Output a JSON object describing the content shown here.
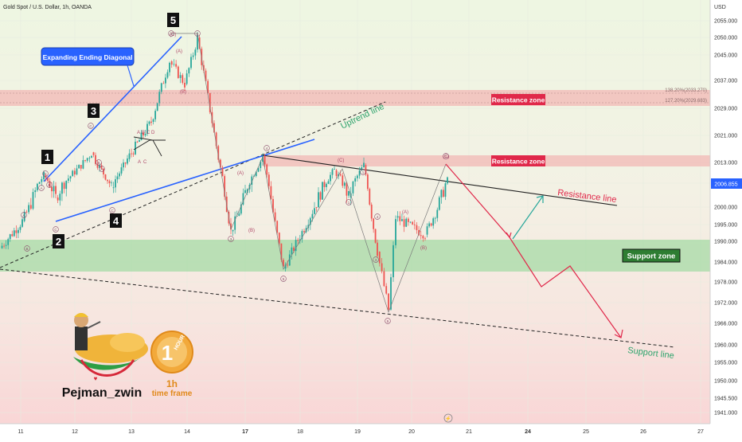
{
  "header": {
    "title": "Gold Spot / U.S. Dollar, 1h, OANDA",
    "currency": "USD"
  },
  "price_axis": {
    "ticks": [
      2055.0,
      2050.0,
      2045.0,
      2037.0,
      2029.0,
      2021.0,
      2013.0,
      2005.0,
      2000.0,
      1995.0,
      1990.0,
      1984.0,
      1978.0,
      1972.0,
      1966.0,
      1960.0,
      1955.0,
      1950.0,
      1945.5,
      1941.0
    ],
    "tick_labels": [
      "2055.000",
      "2050.000",
      "2045.000",
      "2037.000",
      "2029.000",
      "2021.000",
      "2013.000",
      "2005.000",
      "2000.000",
      "1995.000",
      "1990.000",
      "1984.000",
      "1978.000",
      "1972.000",
      "1966.000",
      "1960.000",
      "1955.000",
      "1950.000",
      "1945.500",
      "1941.000"
    ],
    "current_price": "2006.855"
  },
  "time_axis": {
    "labels": [
      "11",
      "12",
      "13",
      "14",
      "17",
      "18",
      "19",
      "20",
      "21",
      "24",
      "25",
      "26",
      "27"
    ],
    "bold": [
      "17",
      "24"
    ]
  },
  "chart_data": {
    "type": "line",
    "title": "Gold Spot / U.S. Dollar, 1h, OANDA",
    "ylabel": "USD",
    "x": [
      "11",
      "11.5",
      "12",
      "12.5",
      "13",
      "13.3",
      "13.6",
      "13.8",
      "14",
      "14.2",
      "14.5",
      "17",
      "17.3",
      "17.5",
      "18",
      "18.5",
      "18.7",
      "19",
      "19.3",
      "19.5",
      "19.8",
      "20",
      "20.3",
      "20.5"
    ],
    "series": [
      {
        "values": [
          1988,
          1996,
          2008,
          2002,
          2016,
          2004,
          2014,
          2025,
          2043,
          2036,
          2050,
          1993,
          2003,
          2015,
          1982,
          2000,
          2010,
          2002,
          2012,
          1987,
          1970,
          1997,
          1992,
          2006
        ]
      }
    ],
    "ylim": [
      1939,
      2058
    ],
    "grid": true,
    "zones": [
      {
        "label": "Resistance zone",
        "from": 2029.683,
        "to": 2033.27
      },
      {
        "label": "Resistance zone",
        "from": 2011.5,
        "to": 2015.5
      },
      {
        "label": "Support zone",
        "from": 1981.0,
        "to": 1990.0
      }
    ],
    "fib_levels": [
      {
        "label": "138.20%(2033.270)",
        "value": 2033.27
      },
      {
        "label": "127.20%(2029.683)",
        "value": 2029.683
      }
    ],
    "annotations": {
      "wave_labels": [
        "1",
        "2",
        "3",
        "4",
        "5"
      ],
      "callout": "Expanding Ending Diagonal",
      "uptrend": "Uptrend line",
      "resistance_line": "Resistance line",
      "support_line": "Support line",
      "sub_waves": [
        "(A)",
        "(B)",
        "(C)",
        "(A)",
        "(B)",
        "(C)",
        "(A)",
        "(B)",
        "(C)",
        "A",
        "B",
        "C",
        "D",
        "E",
        "(A)",
        "(B)",
        "(C)"
      ],
      "circled": [
        "1",
        "2",
        "3",
        "4",
        "5",
        "1",
        "2",
        "3",
        "4",
        "5"
      ]
    }
  },
  "branding": {
    "author": "Pejman_zwin",
    "badge_text": "HOUR",
    "badge_number": "1",
    "timeframe_top": "1h",
    "timeframe_bottom": "time frame"
  },
  "colors": {
    "up": "#26a69a",
    "down": "#ef5350",
    "resistance": "#f2b8b5",
    "support": "#a5dba5",
    "resistance_label": "#e0284a",
    "support_label": "#2e7d32",
    "diagonal": "#2962ff",
    "forecast": "#e0284a",
    "forecast_up": "#26a69a",
    "price_tag": "#2962ff"
  }
}
